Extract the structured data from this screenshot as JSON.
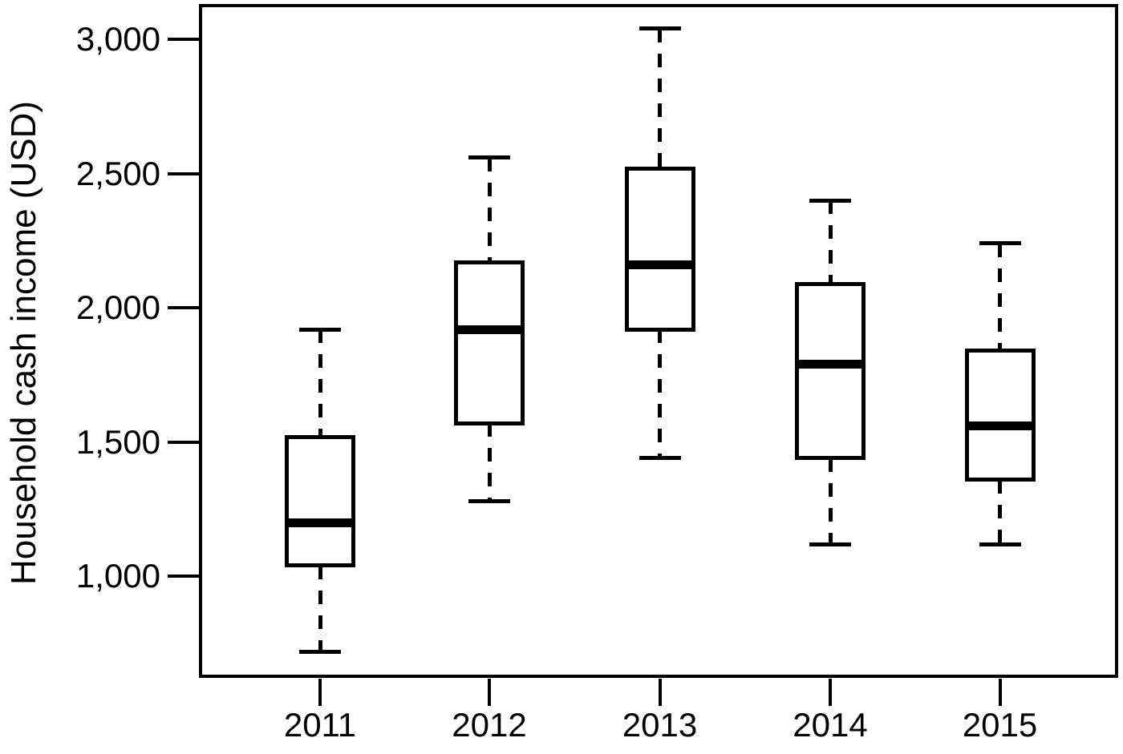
{
  "figure": {
    "background": "#ffffff",
    "ink_color": "#000000"
  },
  "chart_data": {
    "type": "boxplot",
    "title": "",
    "xlabel": "",
    "ylabel": "Household cash income (USD)",
    "grid": false,
    "legend": null,
    "y_axis": {
      "range": [
        700,
        3100
      ],
      "ticks": [
        1000,
        1500,
        2000,
        2500,
        3000
      ],
      "tick_labels": [
        "1,000",
        "1,500",
        "2,000",
        "2,500",
        "3,000"
      ]
    },
    "categories": [
      "2011",
      "2012",
      "2013",
      "2014",
      "2015"
    ],
    "series": [
      {
        "category": "2011",
        "whisker_low": 720,
        "q1": 1040,
        "median": 1200,
        "q3": 1520,
        "whisker_high": 1920
      },
      {
        "category": "2012",
        "whisker_low": 1280,
        "q1": 1570,
        "median": 1920,
        "q3": 2170,
        "whisker_high": 2560
      },
      {
        "category": "2013",
        "whisker_low": 1440,
        "q1": 1920,
        "median": 2160,
        "q3": 2520,
        "whisker_high": 3040
      },
      {
        "category": "2014",
        "whisker_low": 1120,
        "q1": 1440,
        "median": 1790,
        "q3": 2090,
        "whisker_high": 2400
      },
      {
        "category": "2015",
        "whisker_low": 1120,
        "q1": 1360,
        "median": 1560,
        "q3": 1840,
        "whisker_high": 2240
      }
    ]
  }
}
